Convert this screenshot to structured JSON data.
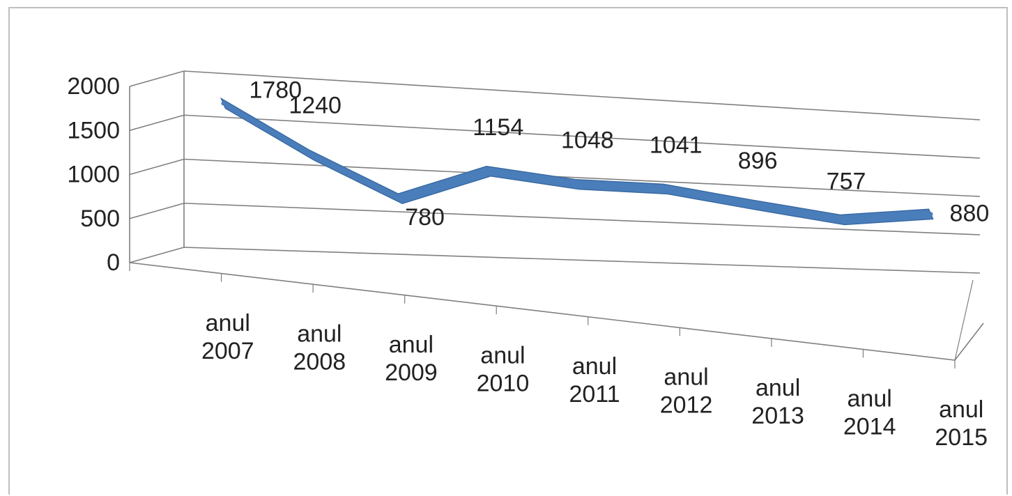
{
  "chart_data": {
    "type": "line",
    "style": "3d",
    "categories": [
      [
        "anul",
        "2007"
      ],
      [
        "anul",
        "2008"
      ],
      [
        "anul",
        "2009"
      ],
      [
        "anul",
        "2010"
      ],
      [
        "anul",
        "2011"
      ],
      [
        "anul",
        "2012"
      ],
      [
        "anul",
        "2013"
      ],
      [
        "anul",
        "2014"
      ],
      [
        "anul",
        "2015"
      ]
    ],
    "values": [
      1780,
      1240,
      780,
      1154,
      1048,
      1041,
      896,
      757,
      880
    ],
    "y_ticks": [
      0,
      500,
      1000,
      1500,
      2000
    ],
    "ylim": [
      0,
      2000
    ],
    "grid": true,
    "legend": "none",
    "series_color": "#4a7ebb",
    "grid_color": "#7f7f7f"
  }
}
